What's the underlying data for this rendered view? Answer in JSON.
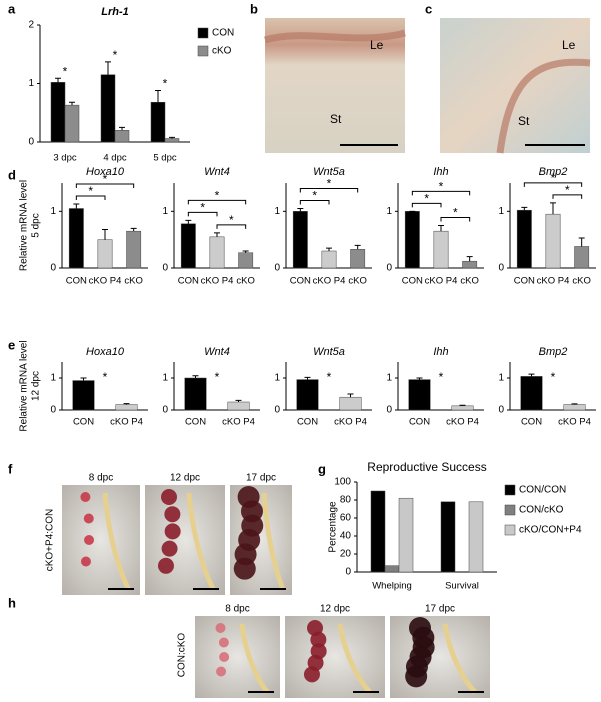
{
  "panel_letters": [
    "a",
    "b",
    "c",
    "d",
    "e",
    "f",
    "g",
    "h"
  ],
  "micrographs": [
    {
      "labels": [
        "Le",
        "St"
      ]
    },
    {
      "labels": [
        "Le",
        "St"
      ]
    }
  ],
  "uterus_photos": [
    {
      "side_label": "cKO+P4:CON",
      "titles": [
        "8 dpc",
        "12 dpc",
        "17 dpc"
      ]
    },
    {
      "side_label": "CON:cKO",
      "titles": [
        "8 dpc",
        "12 dpc",
        "17 dpc"
      ]
    }
  ],
  "chart_data": [
    {
      "type": "bar",
      "title": "Lrh-1",
      "categories": [
        "3 dpc",
        "4 dpc",
        "5 dpc"
      ],
      "series": [
        {
          "name": "CON",
          "color": "#000000",
          "values": [
            1.02,
            1.15,
            0.68
          ],
          "errors": [
            0.07,
            0.22,
            0.2
          ]
        },
        {
          "name": "cKO",
          "color": "#8c8c8c",
          "values": [
            0.63,
            0.2,
            0.06
          ],
          "errors": [
            0.05,
            0.05,
            0.02
          ]
        }
      ],
      "ylim": [
        0,
        2
      ],
      "yticks": [
        0,
        1,
        2
      ],
      "legend": "right",
      "annotations": [
        {
          "text": "*",
          "category": "3 dpc"
        },
        {
          "text": "*",
          "category": "4 dpc"
        },
        {
          "text": "*",
          "category": "5 dpc"
        }
      ]
    },
    {
      "type": "bar",
      "title": "Hoxa10",
      "ylabel": [
        "Relative mRNA level",
        "5 dpc"
      ],
      "categories": [
        "CON",
        "cKO P4",
        "cKO"
      ],
      "values": [
        1.05,
        0.5,
        0.65
      ],
      "errors": [
        0.08,
        0.18,
        0.05
      ],
      "colors": [
        "#000000",
        "#cccccc",
        "#8c8c8c"
      ],
      "ylim": [
        0,
        1.5
      ],
      "yticks": [
        0,
        1
      ],
      "annotations": [
        {
          "text": "*",
          "between": [
            "CON",
            "cKO P4"
          ]
        },
        {
          "text": "*",
          "between": [
            "CON",
            "cKO"
          ]
        }
      ]
    },
    {
      "type": "bar",
      "title": "Wnt4",
      "categories": [
        "CON",
        "cKO P4",
        "cKO"
      ],
      "values": [
        0.78,
        0.55,
        0.27
      ],
      "errors": [
        0.06,
        0.07,
        0.03
      ],
      "colors": [
        "#000000",
        "#cccccc",
        "#8c8c8c"
      ],
      "ylim": [
        0,
        1.5
      ],
      "yticks": [
        0,
        1
      ],
      "annotations": [
        {
          "text": "*",
          "between": [
            "CON",
            "cKO P4"
          ]
        },
        {
          "text": "*",
          "between": [
            "cKO P4",
            "cKO"
          ]
        },
        {
          "text": "*",
          "between": [
            "CON",
            "cKO"
          ]
        }
      ]
    },
    {
      "type": "bar",
      "title": "Wnt5a",
      "categories": [
        "CON",
        "cKO P4",
        "cKO"
      ],
      "values": [
        1.0,
        0.3,
        0.33
      ],
      "errors": [
        0.05,
        0.05,
        0.07
      ],
      "colors": [
        "#000000",
        "#cccccc",
        "#8c8c8c"
      ],
      "ylim": [
        0,
        1.5
      ],
      "yticks": [
        0,
        1
      ],
      "annotations": [
        {
          "text": "*",
          "between": [
            "CON",
            "cKO P4"
          ]
        },
        {
          "text": "*",
          "between": [
            "CON",
            "cKO"
          ]
        }
      ]
    },
    {
      "type": "bar",
      "title": "Ihh",
      "categories": [
        "CON",
        "cKO P4",
        "cKO"
      ],
      "values": [
        1.0,
        0.65,
        0.12
      ],
      "errors": [
        0,
        0.1,
        0.08
      ],
      "colors": [
        "#000000",
        "#cccccc",
        "#8c8c8c"
      ],
      "ylim": [
        0,
        1.5
      ],
      "yticks": [
        0,
        1
      ],
      "annotations": [
        {
          "text": "*",
          "between": [
            "CON",
            "cKO P4"
          ]
        },
        {
          "text": "*",
          "between": [
            "cKO P4",
            "cKO"
          ]
        },
        {
          "text": "*",
          "between": [
            "CON",
            "cKO"
          ]
        }
      ]
    },
    {
      "type": "bar",
      "title": "Bmp2",
      "categories": [
        "CON",
        "cKO P4",
        "cKO"
      ],
      "values": [
        1.02,
        0.95,
        0.38
      ],
      "errors": [
        0.05,
        0.2,
        0.15
      ],
      "colors": [
        "#000000",
        "#cccccc",
        "#8c8c8c"
      ],
      "ylim": [
        0,
        1.5
      ],
      "yticks": [
        0,
        1
      ],
      "annotations": [
        {
          "text": "*",
          "between": [
            "cKO P4",
            "cKO"
          ]
        },
        {
          "text": "*",
          "between": [
            "CON",
            "cKO"
          ]
        }
      ]
    },
    {
      "type": "bar",
      "title": "Hoxa10",
      "ylabel": [
        "Relative mRNA level",
        "12 dpc"
      ],
      "categories": [
        "CON",
        "cKO P4"
      ],
      "values": [
        0.92,
        0.17
      ],
      "errors": [
        0.08,
        0.03
      ],
      "colors": [
        "#000000",
        "#cccccc"
      ],
      "ylim": [
        0,
        1.5
      ],
      "yticks": [
        0,
        1
      ],
      "annotations": [
        {
          "text": "*"
        }
      ]
    },
    {
      "type": "bar",
      "title": "Wnt4",
      "categories": [
        "CON",
        "cKO P4"
      ],
      "values": [
        1.0,
        0.25
      ],
      "errors": [
        0.07,
        0.05
      ],
      "colors": [
        "#000000",
        "#cccccc"
      ],
      "ylim": [
        0,
        1.5
      ],
      "yticks": [
        0,
        1
      ],
      "annotations": [
        {
          "text": "*"
        }
      ]
    },
    {
      "type": "bar",
      "title": "Wnt5a",
      "categories": [
        "CON",
        "cKO P4"
      ],
      "values": [
        0.95,
        0.4
      ],
      "errors": [
        0.07,
        0.1
      ],
      "colors": [
        "#000000",
        "#cccccc"
      ],
      "ylim": [
        0,
        1.5
      ],
      "yticks": [
        0,
        1
      ],
      "annotations": [
        {
          "text": "*"
        }
      ]
    },
    {
      "type": "bar",
      "title": "Ihh",
      "categories": [
        "CON",
        "cKO P4"
      ],
      "values": [
        0.95,
        0.13
      ],
      "errors": [
        0.05,
        0.02
      ],
      "colors": [
        "#000000",
        "#cccccc"
      ],
      "ylim": [
        0,
        1.5
      ],
      "yticks": [
        0,
        1
      ],
      "annotations": [
        {
          "text": "*"
        }
      ]
    },
    {
      "type": "bar",
      "title": "Bmp2",
      "categories": [
        "CON",
        "cKO P4"
      ],
      "values": [
        1.05,
        0.17
      ],
      "errors": [
        0.07,
        0.02
      ],
      "colors": [
        "#000000",
        "#cccccc"
      ],
      "ylim": [
        0,
        1.5
      ],
      "yticks": [
        0,
        1
      ],
      "annotations": [
        {
          "text": "*"
        }
      ]
    },
    {
      "type": "bar",
      "title": "Reproductive Success",
      "ylabel": [
        "Percentage"
      ],
      "categories": [
        "Whelping",
        "Survival"
      ],
      "series": [
        {
          "name": "CON/CON",
          "color": "#000000",
          "values": [
            90,
            78
          ]
        },
        {
          "name": "CON/cKO",
          "color": "#7f7f7f",
          "values": [
            7,
            null
          ]
        },
        {
          "name": "cKO/CON+P4",
          "color": "#c8c8c8",
          "values": [
            82,
            78
          ]
        }
      ],
      "ylim": [
        0,
        100
      ],
      "yticks": [
        0,
        20,
        40,
        60,
        80,
        100
      ],
      "legend": "right"
    }
  ]
}
